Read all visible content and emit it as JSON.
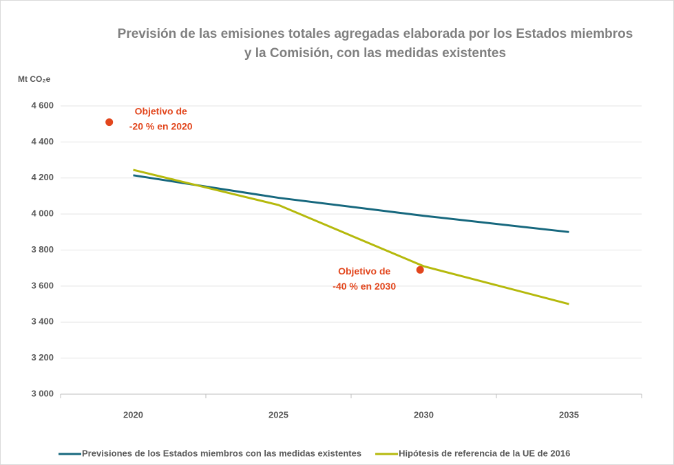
{
  "chart_data": {
    "type": "line",
    "title": [
      "Previsión de las emisiones totales agregadas elaborada por los Estados miembros",
      "y la Comisión, con las medidas existentes"
    ],
    "y_axis_label": "Mt CO₂e",
    "categories": [
      "2020",
      "2025",
      "2030",
      "2035"
    ],
    "series": [
      {
        "name": "Previsiones de los Estados miembros con las medidas existentes",
        "color": "#17687e",
        "values": [
          4215,
          4090,
          3990,
          3900
        ]
      },
      {
        "name": "Hipótesis de referencia de la UE de 2016",
        "color": "#b5b90c",
        "values": [
          4245,
          4050,
          3710,
          3500
        ]
      }
    ],
    "annotations": [
      {
        "lines": [
          "Objetivo de",
          "-20 % en 2020"
        ],
        "value": 4510,
        "color": "#e2461d"
      },
      {
        "lines": [
          "Objetivo de",
          "-40 % en 2030"
        ],
        "value": 3690,
        "color": "#e2461d"
      }
    ],
    "ylim": [
      3000,
      4600
    ],
    "yticks": [
      {
        "value": 3000,
        "label": "3 000"
      },
      {
        "value": 3200,
        "label": "3 200"
      },
      {
        "value": 3400,
        "label": "3 400"
      },
      {
        "value": 3600,
        "label": "3 600"
      },
      {
        "value": 3800,
        "label": "3 800"
      },
      {
        "value": 4000,
        "label": "4 000"
      },
      {
        "value": 4200,
        "label": "4 200"
      },
      {
        "value": 4400,
        "label": "4 400"
      },
      {
        "value": 4600,
        "label": "4 600"
      }
    ],
    "grid": true,
    "legend": "bottom"
  }
}
